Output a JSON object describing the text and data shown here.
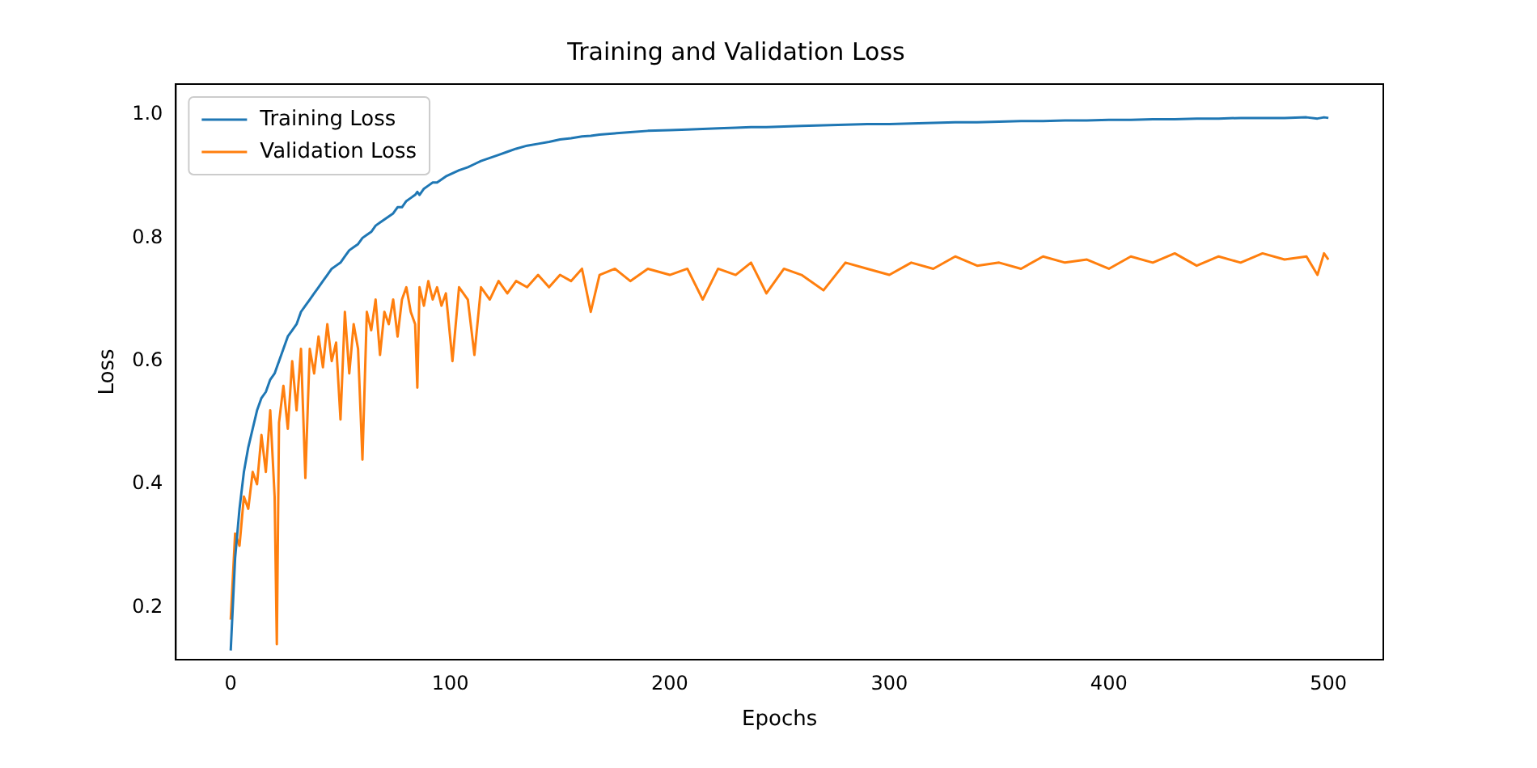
{
  "chart_data": {
    "type": "line",
    "title": "Training and Validation Loss",
    "xlabel": "Epochs",
    "ylabel": "Loss",
    "xlim": [
      -25,
      525
    ],
    "xticks": [
      0,
      100,
      200,
      300,
      400,
      500
    ],
    "ylim": [
      0.115,
      1.05
    ],
    "yticks": [
      {
        "value": 0.2,
        "label": "0.2"
      },
      {
        "value": 0.4,
        "label": "0.4"
      },
      {
        "value": 0.6,
        "label": "0.6"
      },
      {
        "value": 0.8,
        "label": "0.8"
      },
      {
        "value": 1,
        "label": "1.0"
      }
    ],
    "grid": false,
    "legend": "top left",
    "marker": "none",
    "line_style": "solid",
    "x": [
      0,
      2,
      4,
      6,
      8,
      10,
      12,
      14,
      16,
      18,
      20,
      21,
      22,
      24,
      26,
      28,
      30,
      32,
      34,
      36,
      38,
      40,
      42,
      44,
      46,
      48,
      50,
      52,
      54,
      56,
      58,
      60,
      62,
      64,
      66,
      68,
      70,
      72,
      74,
      76,
      78,
      80,
      82,
      84,
      85,
      86,
      88,
      90,
      92,
      94,
      96,
      98,
      101,
      104,
      108,
      111,
      114,
      118,
      122,
      126,
      130,
      135,
      140,
      145,
      150,
      155,
      160,
      164,
      168,
      175,
      182,
      190,
      200,
      208,
      215,
      222,
      230,
      237,
      244,
      252,
      260,
      270,
      280,
      290,
      300,
      310,
      320,
      330,
      340,
      350,
      360,
      370,
      380,
      390,
      400,
      410,
      420,
      430,
      440,
      450,
      460,
      470,
      480,
      490,
      495,
      498,
      500
    ],
    "series": [
      {
        "name": "Training Loss",
        "color": "#1f77b4",
        "values": [
          0.13,
          0.28,
          0.36,
          0.42,
          0.46,
          0.49,
          0.52,
          0.54,
          0.55,
          0.57,
          0.58,
          0.59,
          0.6,
          0.62,
          0.64,
          0.65,
          0.66,
          0.68,
          0.69,
          0.7,
          0.71,
          0.72,
          0.73,
          0.74,
          0.75,
          0.755,
          0.76,
          0.77,
          0.78,
          0.785,
          0.79,
          0.8,
          0.805,
          0.81,
          0.82,
          0.825,
          0.83,
          0.835,
          0.84,
          0.85,
          0.85,
          0.86,
          0.865,
          0.87,
          0.875,
          0.87,
          0.88,
          0.885,
          0.89,
          0.89,
          0.895,
          0.9,
          0.905,
          0.91,
          0.915,
          0.92,
          0.925,
          0.93,
          0.935,
          0.94,
          0.945,
          0.95,
          0.953,
          0.956,
          0.96,
          0.962,
          0.965,
          0.966,
          0.968,
          0.97,
          0.972,
          0.974,
          0.975,
          0.976,
          0.977,
          0.978,
          0.979,
          0.98,
          0.98,
          0.981,
          0.982,
          0.983,
          0.984,
          0.985,
          0.985,
          0.986,
          0.987,
          0.988,
          0.988,
          0.989,
          0.99,
          0.99,
          0.991,
          0.991,
          0.992,
          0.992,
          0.993,
          0.993,
          0.994,
          0.994,
          0.995,
          0.995,
          0.995,
          0.996,
          0.994,
          0.996,
          0.995
        ]
      },
      {
        "name": "Validation Loss",
        "color": "#ff7f0e",
        "values": [
          0.18,
          0.32,
          0.3,
          0.38,
          0.36,
          0.42,
          0.4,
          0.48,
          0.42,
          0.52,
          0.38,
          0.14,
          0.5,
          0.56,
          0.49,
          0.6,
          0.52,
          0.62,
          0.41,
          0.62,
          0.58,
          0.64,
          0.59,
          0.66,
          0.6,
          0.63,
          0.505,
          0.68,
          0.58,
          0.66,
          0.62,
          0.44,
          0.68,
          0.65,
          0.7,
          0.61,
          0.68,
          0.66,
          0.7,
          0.64,
          0.7,
          0.72,
          0.68,
          0.66,
          0.557,
          0.72,
          0.69,
          0.73,
          0.7,
          0.72,
          0.69,
          0.71,
          0.6,
          0.72,
          0.7,
          0.61,
          0.72,
          0.7,
          0.73,
          0.71,
          0.73,
          0.72,
          0.74,
          0.72,
          0.74,
          0.73,
          0.75,
          0.68,
          0.74,
          0.75,
          0.73,
          0.75,
          0.74,
          0.75,
          0.7,
          0.75,
          0.74,
          0.76,
          0.71,
          0.75,
          0.74,
          0.715,
          0.76,
          0.75,
          0.74,
          0.76,
          0.75,
          0.77,
          0.755,
          0.76,
          0.75,
          0.77,
          0.76,
          0.765,
          0.75,
          0.77,
          0.76,
          0.775,
          0.755,
          0.77,
          0.76,
          0.775,
          0.765,
          0.77,
          0.74,
          0.775,
          0.765
        ]
      }
    ]
  }
}
